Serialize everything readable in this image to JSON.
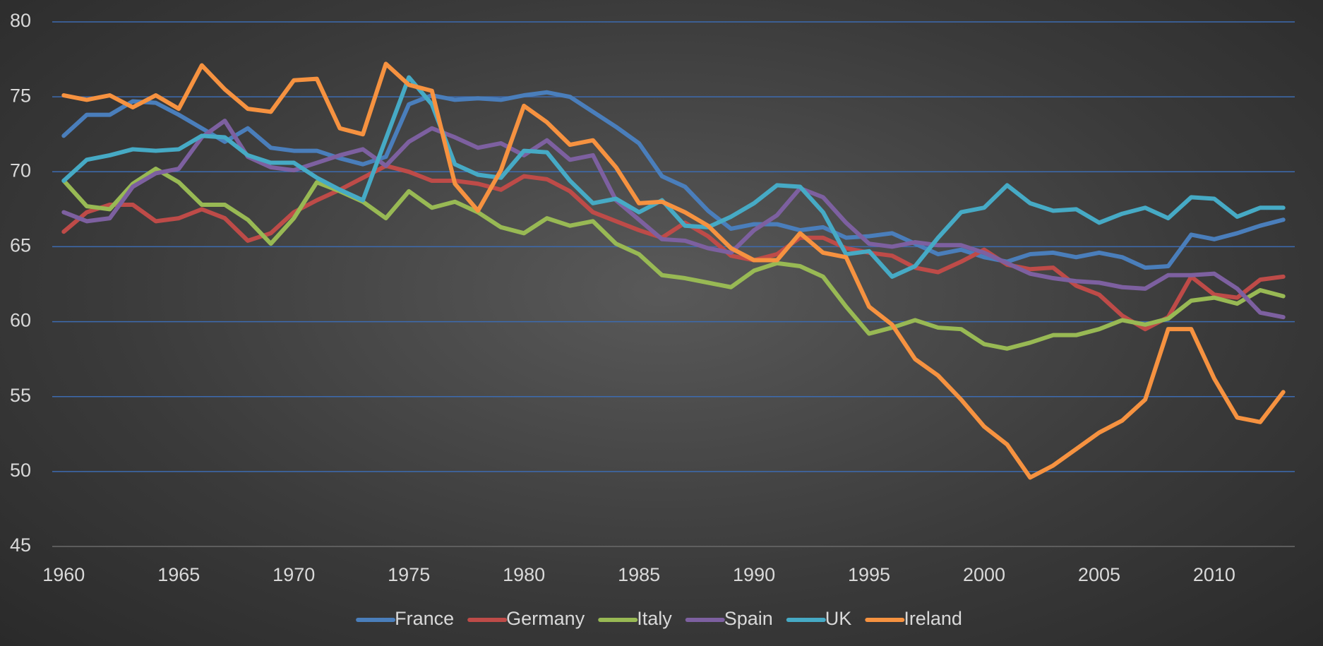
{
  "chart_data": {
    "type": "line",
    "x": [
      1960,
      1961,
      1962,
      1963,
      1964,
      1965,
      1966,
      1967,
      1968,
      1969,
      1970,
      1971,
      1972,
      1973,
      1974,
      1975,
      1976,
      1977,
      1978,
      1979,
      1980,
      1981,
      1982,
      1983,
      1984,
      1985,
      1986,
      1987,
      1988,
      1989,
      1990,
      1991,
      1992,
      1993,
      1994,
      1995,
      1996,
      1997,
      1998,
      1999,
      2000,
      2001,
      2002,
      2003,
      2004,
      2005,
      2006,
      2007,
      2008,
      2009,
      2010,
      2011,
      2012,
      2013
    ],
    "series": [
      {
        "name": "France",
        "color": "#4a7ebb",
        "values": [
          72.4,
          73.8,
          73.8,
          74.7,
          74.6,
          73.8,
          72.9,
          72.0,
          72.9,
          71.6,
          71.4,
          71.4,
          70.9,
          70.5,
          71.0,
          74.5,
          75.1,
          74.8,
          74.9,
          74.8,
          75.1,
          75.3,
          75.0,
          74.0,
          73.0,
          71.9,
          69.7,
          69.0,
          67.4,
          66.2,
          66.5,
          66.5,
          66.1,
          66.3,
          65.6,
          65.7,
          65.9,
          65.2,
          64.5,
          64.8,
          64.3,
          64.0,
          64.5,
          64.6,
          64.3,
          64.6,
          64.3,
          63.6,
          63.7,
          65.8,
          65.5,
          65.9,
          66.4,
          66.8
        ]
      },
      {
        "name": "Germany",
        "color": "#be4b48",
        "values": [
          66.0,
          67.3,
          67.8,
          67.8,
          66.7,
          66.9,
          67.5,
          66.9,
          65.4,
          65.9,
          67.3,
          68.1,
          68.8,
          69.6,
          70.4,
          70.0,
          69.4,
          69.4,
          69.2,
          68.8,
          69.7,
          69.5,
          68.7,
          67.3,
          66.7,
          66.1,
          65.6,
          66.6,
          65.7,
          64.4,
          64.1,
          64.5,
          65.6,
          65.6,
          64.9,
          64.6,
          64.4,
          63.6,
          63.3,
          64.0,
          64.8,
          63.8,
          63.5,
          63.6,
          62.4,
          61.8,
          60.4,
          59.5,
          60.3,
          63.0,
          61.8,
          61.6,
          62.8,
          63.0
        ]
      },
      {
        "name": "Italy",
        "color": "#98b954",
        "values": [
          69.4,
          67.7,
          67.5,
          69.2,
          70.2,
          69.3,
          67.8,
          67.8,
          66.8,
          65.2,
          66.9,
          69.3,
          68.7,
          68.0,
          66.9,
          68.7,
          67.6,
          68.0,
          67.3,
          66.3,
          65.9,
          66.9,
          66.4,
          66.7,
          65.2,
          64.5,
          63.1,
          62.9,
          62.6,
          62.3,
          63.4,
          63.9,
          63.7,
          63.0,
          61.0,
          59.2,
          59.6,
          60.1,
          59.6,
          59.5,
          58.5,
          58.2,
          58.6,
          59.1,
          59.1,
          59.5,
          60.1,
          59.8,
          60.2,
          61.4,
          61.6,
          61.2,
          62.1,
          61.7
        ]
      },
      {
        "name": "Spain",
        "color": "#7d60a0",
        "values": [
          67.3,
          66.7,
          66.9,
          69.0,
          69.9,
          70.2,
          72.3,
          73.4,
          71.0,
          70.3,
          70.1,
          70.6,
          71.1,
          71.5,
          70.4,
          72.0,
          72.9,
          72.3,
          71.6,
          71.9,
          71.1,
          72.1,
          70.8,
          71.1,
          68.1,
          66.8,
          65.5,
          65.4,
          64.9,
          64.6,
          66.1,
          67.1,
          68.9,
          68.3,
          66.6,
          65.2,
          65.0,
          65.3,
          65.1,
          65.1,
          64.6,
          63.9,
          63.2,
          62.9,
          62.7,
          62.6,
          62.3,
          62.2,
          63.1,
          63.1,
          63.2,
          62.2,
          60.6,
          60.3
        ]
      },
      {
        "name": "UK",
        "color": "#46aac5",
        "values": [
          69.4,
          70.8,
          71.1,
          71.5,
          71.4,
          71.5,
          72.4,
          72.3,
          71.1,
          70.6,
          70.6,
          69.6,
          68.8,
          68.1,
          72.2,
          76.3,
          74.5,
          70.5,
          69.8,
          69.6,
          71.4,
          71.3,
          69.4,
          67.9,
          68.2,
          67.3,
          68.1,
          66.4,
          66.3,
          67.0,
          67.9,
          69.1,
          69.0,
          67.3,
          64.5,
          64.7,
          63.0,
          63.7,
          65.6,
          67.3,
          67.6,
          69.1,
          67.9,
          67.4,
          67.5,
          66.6,
          67.2,
          67.6,
          66.9,
          68.3,
          68.2,
          67.0,
          67.6,
          67.6
        ]
      },
      {
        "name": "Ireland",
        "color": "#f69240",
        "values": [
          75.1,
          74.8,
          75.1,
          74.3,
          75.1,
          74.2,
          77.1,
          75.5,
          74.2,
          74.0,
          76.1,
          76.2,
          72.9,
          72.5,
          77.2,
          75.8,
          75.4,
          69.2,
          67.4,
          70.1,
          74.4,
          73.3,
          71.8,
          72.1,
          70.3,
          67.9,
          68.0,
          67.3,
          66.4,
          64.9,
          64.1,
          64.1,
          65.9,
          64.6,
          64.3,
          61.0,
          59.8,
          57.5,
          56.4,
          54.8,
          53.0,
          51.8,
          49.6,
          50.4,
          51.5,
          52.6,
          53.4,
          54.8,
          59.5,
          59.5,
          56.2,
          53.6,
          53.3,
          55.3
        ]
      }
    ],
    "xlim": [
      1959.5,
      2013.5
    ],
    "xticks": [
      1960,
      1965,
      1970,
      1975,
      1980,
      1985,
      1990,
      1995,
      2000,
      2005,
      2010
    ],
    "ylim": [
      45,
      80
    ],
    "yticks": [
      45,
      50,
      55,
      60,
      65,
      70,
      75,
      80
    ],
    "grid": true,
    "legend": "bottom"
  }
}
